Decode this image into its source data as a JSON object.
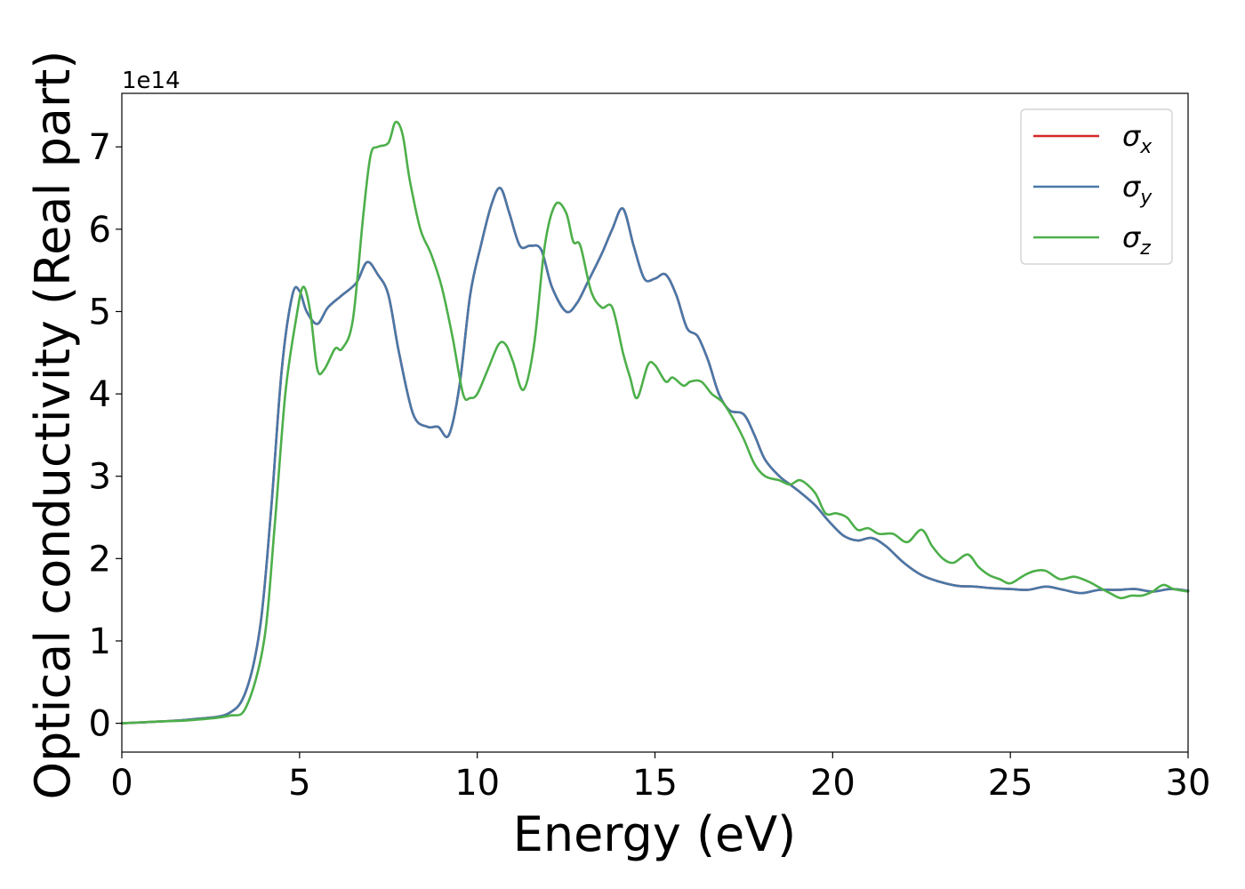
{
  "chart_data": {
    "type": "line",
    "title": "",
    "xlabel": "Energy (eV)",
    "ylabel": "Optical conductivity (Real part)",
    "y_offset_text": "1e14",
    "xlim": [
      0,
      30
    ],
    "ylim": [
      -0.35,
      7.65
    ],
    "xticks": [
      0,
      5,
      10,
      15,
      20,
      25,
      30
    ],
    "xtick_labels": [
      "0",
      "5",
      "10",
      "15",
      "20",
      "25",
      "30"
    ],
    "yticks": [
      0,
      1,
      2,
      3,
      4,
      5,
      6,
      7
    ],
    "ytick_labels": [
      "0",
      "1",
      "2",
      "3",
      "4",
      "5",
      "6",
      "7"
    ],
    "grid": false,
    "legend_position": "top-right",
    "series": [
      {
        "name": "σx",
        "legend_symbol": "σ",
        "legend_sub": "x",
        "color": "#d62728",
        "x": [
          0,
          1,
          2,
          3,
          3.5,
          3.9,
          4.2,
          4.5,
          4.8,
          5.0,
          5.2,
          5.5,
          5.8,
          6.2,
          6.6,
          6.9,
          7.2,
          7.5,
          7.8,
          8.2,
          8.6,
          8.9,
          9.2,
          9.5,
          9.8,
          10.1,
          10.4,
          10.65,
          10.9,
          11.2,
          11.5,
          11.8,
          12.1,
          12.5,
          12.8,
          13.1,
          13.5,
          13.8,
          14.1,
          14.4,
          14.7,
          15.0,
          15.3,
          15.6,
          15.9,
          16.2,
          16.5,
          16.8,
          17.1,
          17.5,
          17.8,
          18.1,
          18.5,
          18.8,
          19.1,
          19.5,
          19.9,
          20.3,
          20.7,
          21.1,
          21.5,
          22.0,
          22.5,
          23.0,
          23.5,
          24.0,
          24.5,
          25.0,
          25.5,
          26.0,
          26.5,
          27.0,
          27.5,
          28.0,
          28.5,
          29.0,
          29.5,
          30.0
        ],
        "y": [
          0,
          0.02,
          0.05,
          0.12,
          0.4,
          1.2,
          2.6,
          4.3,
          5.2,
          5.25,
          5.0,
          4.85,
          5.05,
          5.2,
          5.35,
          5.6,
          5.45,
          5.2,
          4.5,
          3.75,
          3.6,
          3.6,
          3.5,
          4.1,
          5.2,
          5.8,
          6.3,
          6.5,
          6.2,
          5.8,
          5.8,
          5.75,
          5.3,
          5.0,
          5.1,
          5.35,
          5.7,
          6.0,
          6.25,
          5.8,
          5.4,
          5.4,
          5.45,
          5.2,
          4.8,
          4.7,
          4.4,
          4.0,
          3.8,
          3.75,
          3.5,
          3.2,
          3.0,
          2.9,
          2.8,
          2.65,
          2.45,
          2.28,
          2.22,
          2.25,
          2.15,
          1.95,
          1.8,
          1.72,
          1.67,
          1.66,
          1.64,
          1.63,
          1.62,
          1.66,
          1.62,
          1.58,
          1.62,
          1.62,
          1.63,
          1.6,
          1.63,
          1.61
        ]
      },
      {
        "name": "σy",
        "legend_symbol": "σ",
        "legend_sub": "y",
        "color": "#4878a8",
        "x": [
          0,
          1,
          2,
          3,
          3.5,
          3.9,
          4.2,
          4.5,
          4.8,
          5.0,
          5.2,
          5.5,
          5.8,
          6.2,
          6.6,
          6.9,
          7.2,
          7.5,
          7.8,
          8.2,
          8.6,
          8.9,
          9.2,
          9.5,
          9.8,
          10.1,
          10.4,
          10.65,
          10.9,
          11.2,
          11.5,
          11.8,
          12.1,
          12.5,
          12.8,
          13.1,
          13.5,
          13.8,
          14.1,
          14.4,
          14.7,
          15.0,
          15.3,
          15.6,
          15.9,
          16.2,
          16.5,
          16.8,
          17.1,
          17.5,
          17.8,
          18.1,
          18.5,
          18.8,
          19.1,
          19.5,
          19.9,
          20.3,
          20.7,
          21.1,
          21.5,
          22.0,
          22.5,
          23.0,
          23.5,
          24.0,
          24.5,
          25.0,
          25.5,
          26.0,
          26.5,
          27.0,
          27.5,
          28.0,
          28.5,
          29.0,
          29.5,
          30.0
        ],
        "y": [
          0,
          0.02,
          0.05,
          0.12,
          0.4,
          1.2,
          2.6,
          4.3,
          5.2,
          5.25,
          5.0,
          4.85,
          5.05,
          5.2,
          5.35,
          5.6,
          5.45,
          5.2,
          4.5,
          3.75,
          3.6,
          3.6,
          3.5,
          4.1,
          5.2,
          5.8,
          6.3,
          6.5,
          6.2,
          5.8,
          5.8,
          5.75,
          5.3,
          5.0,
          5.1,
          5.35,
          5.7,
          6.0,
          6.25,
          5.8,
          5.4,
          5.4,
          5.45,
          5.2,
          4.8,
          4.7,
          4.4,
          4.0,
          3.8,
          3.75,
          3.5,
          3.2,
          3.0,
          2.9,
          2.8,
          2.65,
          2.45,
          2.28,
          2.22,
          2.25,
          2.15,
          1.95,
          1.8,
          1.72,
          1.67,
          1.66,
          1.64,
          1.63,
          1.62,
          1.66,
          1.62,
          1.58,
          1.62,
          1.62,
          1.63,
          1.6,
          1.63,
          1.61
        ]
      },
      {
        "name": "σz",
        "legend_symbol": "σ",
        "legend_sub": "z",
        "color": "#4daf4a",
        "x": [
          0,
          1,
          2,
          3,
          3.5,
          4.0,
          4.3,
          4.6,
          4.9,
          5.1,
          5.3,
          5.5,
          5.7,
          6.0,
          6.2,
          6.5,
          6.8,
          7.0,
          7.2,
          7.5,
          7.7,
          7.9,
          8.1,
          8.4,
          8.7,
          9.0,
          9.3,
          9.6,
          9.8,
          10.0,
          10.3,
          10.6,
          10.8,
          11.0,
          11.3,
          11.6,
          11.9,
          12.2,
          12.5,
          12.7,
          12.9,
          13.2,
          13.5,
          13.8,
          14.1,
          14.3,
          14.5,
          14.8,
          15.0,
          15.3,
          15.5,
          15.8,
          16.0,
          16.3,
          16.6,
          16.9,
          17.2,
          17.5,
          17.8,
          18.1,
          18.5,
          18.8,
          19.1,
          19.5,
          19.8,
          20.1,
          20.4,
          20.7,
          21.0,
          21.3,
          21.7,
          22.1,
          22.5,
          22.8,
          23.1,
          23.4,
          23.8,
          24.1,
          24.4,
          24.7,
          25.0,
          25.4,
          25.7,
          26.0,
          26.4,
          26.8,
          27.2,
          27.5,
          27.8,
          28.1,
          28.4,
          28.7,
          29.0,
          29.3,
          29.6,
          30.0
        ],
        "y": [
          0,
          0.02,
          0.04,
          0.09,
          0.2,
          1.0,
          2.4,
          4.0,
          4.9,
          5.3,
          5.0,
          4.3,
          4.3,
          4.55,
          4.55,
          4.9,
          6.2,
          6.9,
          7.0,
          7.05,
          7.3,
          7.15,
          6.6,
          6.0,
          5.7,
          5.3,
          4.7,
          4.0,
          3.95,
          4.0,
          4.3,
          4.6,
          4.6,
          4.4,
          4.05,
          4.6,
          5.8,
          6.3,
          6.2,
          5.85,
          5.8,
          5.25,
          5.05,
          5.05,
          4.5,
          4.2,
          3.95,
          4.35,
          4.35,
          4.15,
          4.2,
          4.1,
          4.15,
          4.15,
          4.0,
          3.9,
          3.7,
          3.45,
          3.15,
          3.0,
          2.95,
          2.9,
          2.95,
          2.8,
          2.55,
          2.55,
          2.5,
          2.35,
          2.37,
          2.3,
          2.3,
          2.2,
          2.35,
          2.15,
          2.0,
          1.95,
          2.05,
          1.9,
          1.8,
          1.75,
          1.7,
          1.8,
          1.85,
          1.85,
          1.75,
          1.78,
          1.72,
          1.65,
          1.58,
          1.52,
          1.55,
          1.55,
          1.6,
          1.68,
          1.63,
          1.6
        ]
      }
    ]
  }
}
